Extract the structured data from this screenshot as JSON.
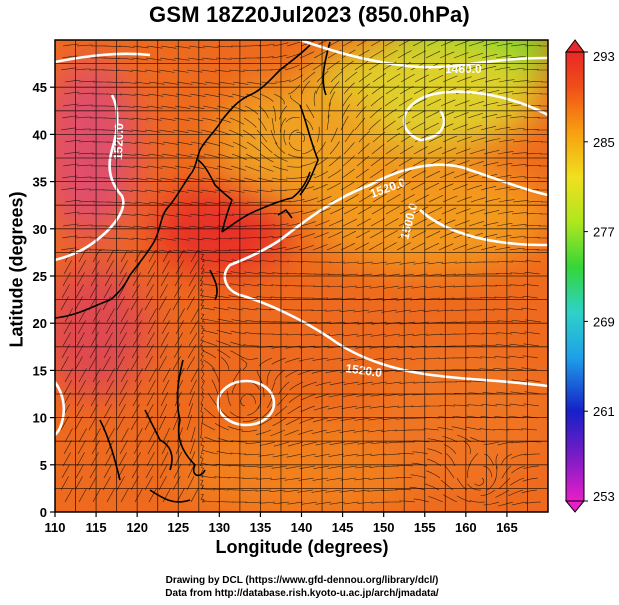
{
  "title": "GSM 18Z20Jul2023 (850.0hPa)",
  "xlabel": "Longitude (degrees)",
  "ylabel": "Latitude  (degrees)",
  "credit_line1": "Drawing by DCL (https://www.gfd-dennou.org/library/dcl/)",
  "credit_line2": "Data from http://database.rish.kyoto-u.ac.jp/arch/jmadata/",
  "chart_data": {
    "type": "heatmap",
    "title": "GSM 18Z20Jul2023 (850.0hPa)",
    "xlabel": "Longitude (degrees)",
    "ylabel": "Latitude  (degrees)",
    "xlim": [
      110,
      170
    ],
    "ylim": [
      0,
      50
    ],
    "x_ticks": [
      110,
      115,
      120,
      125,
      130,
      135,
      140,
      145,
      150,
      155,
      160,
      165
    ],
    "y_ticks": [
      0,
      5,
      10,
      15,
      20,
      25,
      30,
      35,
      40,
      45
    ],
    "grid": true,
    "colorbar": {
      "ticks": [
        253,
        261,
        269,
        277,
        285,
        293
      ],
      "range": [
        253,
        293
      ],
      "colors": [
        "#e81ec8",
        "#7a1cc6",
        "#1620c8",
        "#1ea0e8",
        "#2ed2c8",
        "#34d638",
        "#aee61e",
        "#f0e020",
        "#f8a010",
        "#f05018",
        "#e82828"
      ]
    },
    "contour_labels": [
      "1460.0",
      "1520.0",
      "1500.0",
      "1520.0",
      "1520.0"
    ],
    "colors": {
      "field_hot": "#e8402a",
      "field_warm": "#f0701c",
      "field_yellow": "#e8c82a",
      "field_green": "#7ad82a",
      "field_pink": "#e0506a",
      "contour": "#ffffff",
      "coast": "#000000"
    }
  }
}
